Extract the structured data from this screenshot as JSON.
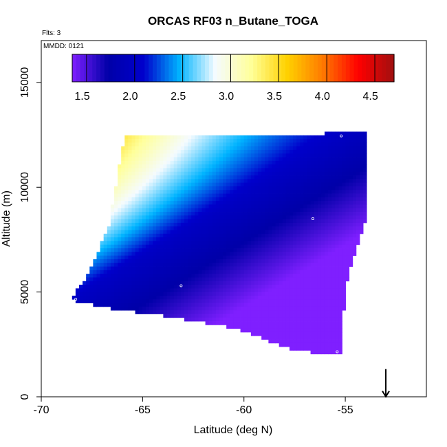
{
  "chart_data": {
    "type": "heatmap",
    "title": "ORCAS RF03 n_Butane_TOGA",
    "annotations": {
      "flights": "Flts: 3",
      "date": "MMDD: 0121"
    },
    "xlabel": "Latitude (deg N)",
    "ylabel": "Altitude (m)",
    "xlim": [
      -70,
      -51
    ],
    "ylim": [
      0,
      17000
    ],
    "xticks": [
      -70,
      -65,
      -60,
      -55
    ],
    "yticks": [
      0,
      5000,
      10000,
      15000
    ],
    "xtick_labels": [
      "-70",
      "-65",
      "-60",
      "-55"
    ],
    "ytick_labels": [
      "0",
      "5000",
      "10000",
      "15000"
    ],
    "colorbar": {
      "range": [
        1.35,
        4.7
      ],
      "ticks": [
        1.5,
        2.0,
        2.5,
        3.0,
        3.5,
        4.0,
        4.5
      ],
      "tick_labels": [
        "1.5",
        "2.0",
        "2.5",
        "3.0",
        "3.5",
        "4.0",
        "4.5"
      ],
      "colors": [
        "#7f1fff",
        "#0000a8",
        "#0000cc",
        "#00b4ff",
        "#f5fbff",
        "#ffff9a",
        "#ffd200",
        "#ff7a00",
        "#ff0000",
        "#a01010"
      ]
    },
    "field_region": {
      "polygon": [
        [
          -65.9,
          12400
        ],
        [
          -53.9,
          12600
        ],
        [
          -53.9,
          8800
        ],
        [
          -54.7,
          6300
        ],
        [
          -55.0,
          5200
        ],
        [
          -55.2,
          2000
        ],
        [
          -57.5,
          2200
        ],
        [
          -60.5,
          3300
        ],
        [
          -63.5,
          3800
        ],
        [
          -66.5,
          4200
        ],
        [
          -68.5,
          4600
        ],
        [
          -68.2,
          5200
        ],
        [
          -67.8,
          5700
        ],
        [
          -66.7,
          8000
        ],
        [
          -65.9,
          12400
        ]
      ]
    },
    "field_shape": {
      "ridge_axis_from": [
        -68.5,
        4600
      ],
      "ridge_axis_to": [
        -55.2,
        12500
      ],
      "max_corner": [
        -65.9,
        12400
      ],
      "min_corner": [
        -55.2,
        2000
      ]
    },
    "sample_points": [
      {
        "lat": -68.3,
        "alt": 4650
      },
      {
        "lat": -63.1,
        "alt": 5300
      },
      {
        "lat": -56.6,
        "alt": 8500
      },
      {
        "lat": -55.2,
        "alt": 12450
      },
      {
        "lat": -55.4,
        "alt": 2150
      }
    ],
    "marker": {
      "lat": -53.0,
      "alt": 600,
      "type": "down-arrow"
    }
  }
}
